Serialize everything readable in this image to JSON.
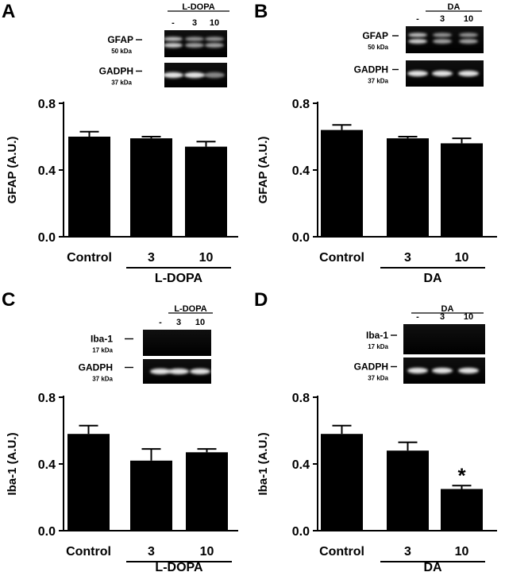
{
  "panels": [
    {
      "letter": "A",
      "blot": {
        "header_label": "L-DOPA",
        "lanes": [
          "-",
          "3",
          "10"
        ],
        "bands": [
          {
            "protein": "GFAP",
            "kda": "50 kDa",
            "style": "double"
          },
          {
            "protein": "GADPH",
            "kda": "37 kDa",
            "style": "single"
          }
        ]
      }
    },
    {
      "letter": "B",
      "blot": {
        "header_label": "DA",
        "lanes": [
          "-",
          "3",
          "10"
        ],
        "bands": [
          {
            "protein": "GFAP",
            "kda": "50 kDa",
            "style": "double"
          },
          {
            "protein": "GADPH",
            "kda": "37 kDa",
            "style": "single"
          }
        ]
      }
    },
    {
      "letter": "C",
      "blot": {
        "header_label": "L-DOPA",
        "lanes": [
          "-",
          "3",
          "10"
        ],
        "bands": [
          {
            "protein": "Iba-1",
            "kda": "17 kDa",
            "style": "blank"
          },
          {
            "protein": "GADPH",
            "kda": "37 kDa",
            "style": "single"
          }
        ]
      }
    },
    {
      "letter": "D",
      "blot": {
        "header_label": "DA",
        "lanes": [
          "-",
          "3",
          "10"
        ],
        "bands": [
          {
            "protein": "Iba-1",
            "kda": "17 kDa",
            "style": "blank"
          },
          {
            "protein": "GADPH",
            "kda": "37 kDa",
            "style": "single"
          }
        ]
      }
    }
  ],
  "chart_data": [
    {
      "type": "bar",
      "panel": "A",
      "ylabel": "GFAP (A.U.)",
      "ylim": [
        0,
        0.8
      ],
      "yticks": [
        "0.0",
        "0.4",
        "0.8"
      ],
      "categories": [
        "Control",
        "3",
        "10"
      ],
      "group_label": "L-DOPA",
      "values": [
        0.6,
        0.59,
        0.54
      ],
      "errors": [
        0.03,
        0.01,
        0.03
      ],
      "annotations": [
        "",
        "",
        ""
      ]
    },
    {
      "type": "bar",
      "panel": "B",
      "ylabel": "GFAP (A.U.)",
      "ylim": [
        0,
        0.8
      ],
      "yticks": [
        "0.0",
        "0.4",
        "0.8"
      ],
      "categories": [
        "Control",
        "3",
        "10"
      ],
      "group_label": "DA",
      "values": [
        0.64,
        0.59,
        0.56
      ],
      "errors": [
        0.03,
        0.01,
        0.03
      ],
      "annotations": [
        "",
        "",
        ""
      ]
    },
    {
      "type": "bar",
      "panel": "C",
      "ylabel": "Iba-1 (A.U.)",
      "ylim": [
        0,
        0.8
      ],
      "yticks": [
        "0.0",
        "0.4",
        "0.8"
      ],
      "categories": [
        "Control",
        "3",
        "10"
      ],
      "group_label": "L-DOPA",
      "values": [
        0.58,
        0.42,
        0.47
      ],
      "errors": [
        0.05,
        0.07,
        0.02
      ],
      "annotations": [
        "",
        "",
        ""
      ]
    },
    {
      "type": "bar",
      "panel": "D",
      "ylabel": "Iba-1 (A.U.)",
      "ylim": [
        0,
        0.8
      ],
      "yticks": [
        "0.0",
        "0.4",
        "0.8"
      ],
      "categories": [
        "Control",
        "3",
        "10"
      ],
      "group_label": "DA",
      "values": [
        0.58,
        0.48,
        0.25
      ],
      "errors": [
        0.05,
        0.05,
        0.02
      ],
      "annotations": [
        "",
        "",
        "*"
      ]
    }
  ]
}
